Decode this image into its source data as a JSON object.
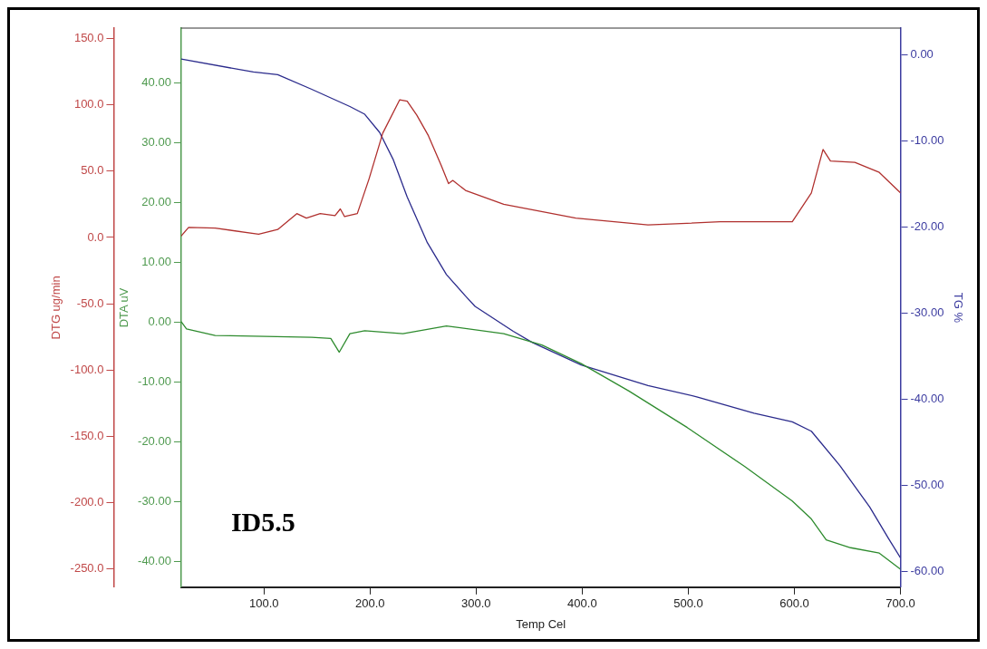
{
  "chart_data": {
    "type": "line",
    "xlabel": "Temp Cel",
    "ylabel": "DTG ug/min",
    "y2label": "DTA uV",
    "y3label": "TG %",
    "annotations": [
      "ID5.5"
    ],
    "xlim": [
      22,
      700
    ],
    "xticks": [
      {
        "value": 100,
        "label": "100.0"
      },
      {
        "value": 200,
        "label": "200.0"
      },
      {
        "value": 300,
        "label": "300.0"
      },
      {
        "value": 400,
        "label": "400.0"
      },
      {
        "value": 500,
        "label": "500.0"
      },
      {
        "value": 600,
        "label": "600.0"
      },
      {
        "value": 700,
        "label": "700.0"
      }
    ],
    "ylim": [
      -264,
      158
    ],
    "yticks": [
      {
        "value": 150,
        "label": "150.0"
      },
      {
        "value": 100,
        "label": "100.0"
      },
      {
        "value": 50,
        "label": "50.0"
      },
      {
        "value": 0,
        "label": "0.0"
      },
      {
        "value": -50,
        "label": "-50.0"
      },
      {
        "value": -100,
        "label": "-100.0"
      },
      {
        "value": -150,
        "label": "-150.0"
      },
      {
        "value": -200,
        "label": "-200.0"
      },
      {
        "value": -250,
        "label": "-250.0"
      }
    ],
    "y2lim": [
      -44.3,
      49.2
    ],
    "y2ticks": [
      {
        "value": 40,
        "label": "40.00"
      },
      {
        "value": 30,
        "label": "30.00"
      },
      {
        "value": 20,
        "label": "20.00"
      },
      {
        "value": 10,
        "label": "10.00"
      },
      {
        "value": 0,
        "label": "0.00"
      },
      {
        "value": -10,
        "label": "-10.00"
      },
      {
        "value": -20,
        "label": "-20.00"
      },
      {
        "value": -30,
        "label": "-30.00"
      },
      {
        "value": -40,
        "label": "-40.00"
      }
    ],
    "y3lim": [
      -61.8,
      3.1
    ],
    "y3ticks": [
      {
        "value": 0,
        "label": "0.00"
      },
      {
        "value": -10,
        "label": "-10.00"
      },
      {
        "value": -20,
        "label": "-20.00"
      },
      {
        "value": -30,
        "label": "-30.00"
      },
      {
        "value": -40,
        "label": "-40.00"
      },
      {
        "value": -50,
        "label": "-50.00"
      },
      {
        "value": -60,
        "label": "-60.00"
      }
    ],
    "marker": "none",
    "line_style": "solid",
    "series": [
      {
        "axis": "y",
        "color": "#b0302e",
        "x": [
          22,
          29,
          54,
          95,
          113,
          131,
          140,
          153,
          167,
          172,
          176,
          188,
          199,
          212,
          228,
          235,
          244,
          255,
          267,
          274,
          278,
          290,
          326,
          394,
          462,
          530,
          598,
          616,
          627,
          634,
          657,
          680,
          700
        ],
        "values": [
          1.1,
          7.6,
          7,
          2.5,
          6,
          18,
          14.6,
          18,
          16.4,
          21.5,
          15.7,
          18,
          44,
          78.7,
          103.9,
          102.8,
          92.4,
          76.8,
          54.5,
          40.6,
          43,
          35.5,
          25,
          14.6,
          9.4,
          11.8,
          11.8,
          33.6,
          66.4,
          57.7,
          56.7,
          49.1,
          33.6
        ]
      },
      {
        "axis": "y2",
        "color": "#2e8b2e",
        "x": [
          22,
          27,
          54,
          145,
          163,
          171,
          181,
          195,
          231,
          272,
          326,
          362,
          399,
          444,
          499,
          553,
          598,
          616,
          630,
          653,
          680,
          700
        ],
        "values": [
          0.1,
          -1.1,
          -2.2,
          -2.5,
          -2.7,
          -5,
          -1.9,
          -1.4,
          -1.9,
          -0.6,
          -1.9,
          -3.8,
          -6.9,
          -11.5,
          -17.6,
          -24.1,
          -29.9,
          -32.9,
          -36.4,
          -37.7,
          -38.6,
          -41.3
        ]
      },
      {
        "axis": "y3",
        "color": "#2b2b8c",
        "x": [
          22,
          90,
          113,
          145,
          181,
          195,
          209,
          222,
          235,
          254,
          272,
          290,
          299,
          335,
          353,
          399,
          462,
          508,
          562,
          598,
          616,
          643,
          671,
          689,
          700
        ],
        "values": [
          -0.5,
          -2,
          -2.3,
          -4,
          -6,
          -6.9,
          -9,
          -12.2,
          -16.5,
          -21.8,
          -25.5,
          -28,
          -29.2,
          -32.1,
          -33.4,
          -36,
          -38.4,
          -39.7,
          -41.6,
          -42.6,
          -43.7,
          -47.7,
          -52.5,
          -56.2,
          -58.4
        ]
      }
    ]
  }
}
